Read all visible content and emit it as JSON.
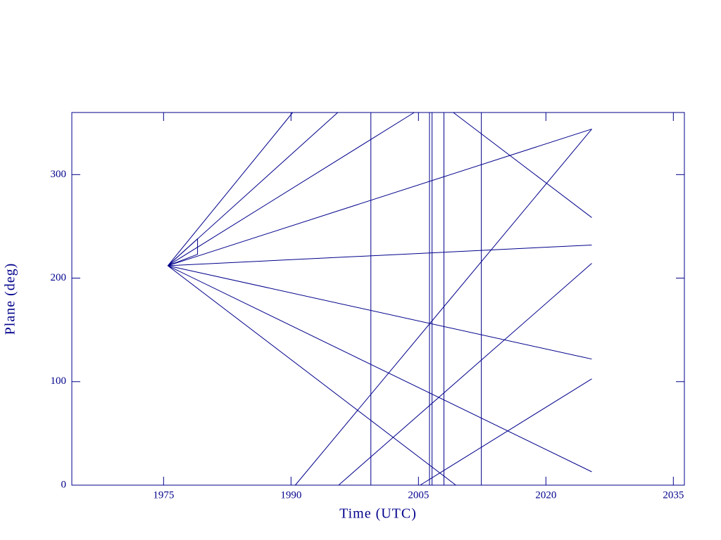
{
  "chart_data": {
    "type": "line",
    "xlabel": "Time (UTC)",
    "ylabel": "Plane (deg)",
    "xlim": [
      1964.2,
      2036.3
    ],
    "xticks": [
      1975,
      1990,
      2005,
      2020,
      2035
    ],
    "ylim": [
      0,
      360
    ],
    "yticks": [
      0,
      100,
      200,
      300
    ],
    "color": "#00008b",
    "series": [
      {
        "x": [
          1975.5,
          1990.2
        ],
        "values": [
          212,
          360
        ]
      },
      {
        "x": [
          1975.5,
          1995.5
        ],
        "values": [
          212,
          360
        ]
      },
      {
        "x": [
          1975.5,
          2004.5
        ],
        "values": [
          212,
          360
        ]
      },
      {
        "x": [
          1975.5,
          2025.4
        ],
        "values": [
          212,
          344
        ]
      },
      {
        "x": [
          1975.5,
          2025.4
        ],
        "values": [
          212,
          232
        ]
      },
      {
        "x": [
          1975.5,
          2025.4
        ],
        "values": [
          212,
          121.8
        ]
      },
      {
        "x": [
          1975.5,
          2025.4
        ],
        "values": [
          212,
          12.9
        ]
      },
      {
        "x": [
          1975.5,
          2009.4
        ],
        "values": [
          212,
          0
        ]
      },
      {
        "x": [
          1975.5,
          1979.0,
          1979.0,
          1975.5
        ],
        "values": [
          212,
          238,
          223,
          212
        ]
      },
      {
        "x": [
          1990.5,
          2025.4
        ],
        "values": [
          0,
          344
        ]
      },
      {
        "x": [
          1995.6,
          2025.4
        ],
        "values": [
          0,
          214.3
        ]
      },
      {
        "x": [
          2005.2,
          2025.4
        ],
        "values": [
          0,
          102.7
        ]
      },
      {
        "x": [
          2009.1,
          2025.4
        ],
        "values": [
          360,
          258.5
        ]
      },
      {
        "x": [
          1999.4,
          1999.4
        ],
        "values": [
          0,
          360
        ]
      },
      {
        "x": [
          2006.3,
          2006.3
        ],
        "values": [
          0,
          360
        ]
      },
      {
        "x": [
          2006.6,
          2006.6
        ],
        "values": [
          0,
          360
        ]
      },
      {
        "x": [
          2008.0,
          2008.0
        ],
        "values": [
          0,
          360
        ]
      },
      {
        "x": [
          2012.4,
          2012.4
        ],
        "values": [
          0,
          360
        ]
      }
    ]
  }
}
